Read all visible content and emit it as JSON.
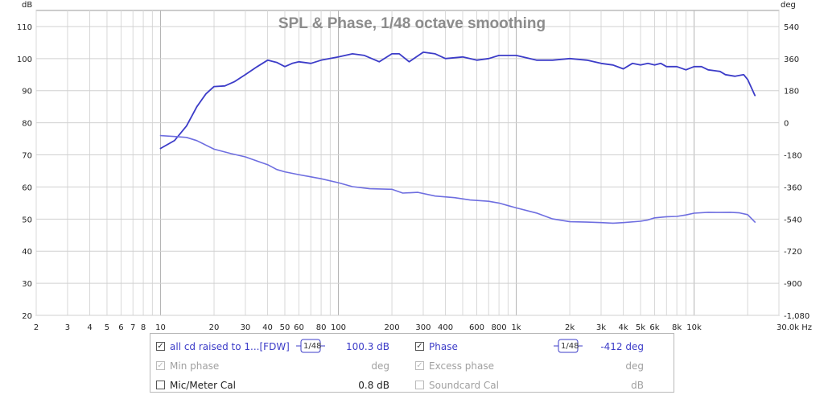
{
  "chart_data": {
    "type": "line",
    "title": "SPL & Phase, 1/48 octave smoothing",
    "y_left_unit": "dB",
    "y_right_unit": "deg",
    "x_unit": "Hz",
    "xlim": [
      2,
      30000
    ],
    "x_scale": "log",
    "ylim_left": [
      20,
      115
    ],
    "ylim_right": [
      -1080,
      630
    ],
    "x_tick_labels": [
      {
        "v": 2,
        "t": "2"
      },
      {
        "v": 3,
        "t": "3"
      },
      {
        "v": 4,
        "t": "4"
      },
      {
        "v": 5,
        "t": "5"
      },
      {
        "v": 6,
        "t": "6"
      },
      {
        "v": 7,
        "t": "7"
      },
      {
        "v": 8,
        "t": "8"
      },
      {
        "v": 10,
        "t": "10"
      },
      {
        "v": 20,
        "t": "20"
      },
      {
        "v": 30,
        "t": "30"
      },
      {
        "v": 40,
        "t": "40"
      },
      {
        "v": 50,
        "t": "50"
      },
      {
        "v": 60,
        "t": "60"
      },
      {
        "v": 80,
        "t": "80"
      },
      {
        "v": 100,
        "t": "100"
      },
      {
        "v": 200,
        "t": "200"
      },
      {
        "v": 300,
        "t": "300"
      },
      {
        "v": 400,
        "t": "400"
      },
      {
        "v": 600,
        "t": "600"
      },
      {
        "v": 800,
        "t": "800"
      },
      {
        "v": 1000,
        "t": "1k"
      },
      {
        "v": 2000,
        "t": "2k"
      },
      {
        "v": 3000,
        "t": "3k"
      },
      {
        "v": 4000,
        "t": "4k"
      },
      {
        "v": 5000,
        "t": "5k"
      },
      {
        "v": 6000,
        "t": "6k"
      },
      {
        "v": 8000,
        "t": "8k"
      },
      {
        "v": 10000,
        "t": "10k"
      },
      {
        "v": 30000,
        "t": "30.0k Hz"
      }
    ],
    "y_left_ticks": [
      20,
      30,
      40,
      50,
      60,
      70,
      80,
      90,
      100,
      110
    ],
    "y_right_ticks": [
      {
        "v": 540,
        "t": "540"
      },
      {
        "v": 360,
        "t": "360"
      },
      {
        "v": 180,
        "t": "180"
      },
      {
        "v": 0,
        "t": "0"
      },
      {
        "v": -180,
        "t": "-180"
      },
      {
        "v": -360,
        "t": "-360"
      },
      {
        "v": -540,
        "t": "-540"
      },
      {
        "v": -720,
        "t": "-720"
      },
      {
        "v": -900,
        "t": "-900"
      },
      {
        "v": -1080,
        "t": "-1,080"
      }
    ],
    "grid": true,
    "series": [
      {
        "name": "all cd raised to 1...[FDW]",
        "axis": "left",
        "color": "#3c3cc8",
        "points": [
          [
            10,
            72
          ],
          [
            12,
            74.5
          ],
          [
            14,
            79
          ],
          [
            16,
            85
          ],
          [
            18,
            89
          ],
          [
            20,
            91.3
          ],
          [
            23,
            91.5
          ],
          [
            26,
            92.8
          ],
          [
            30,
            95
          ],
          [
            35,
            97.5
          ],
          [
            40,
            99.5
          ],
          [
            45,
            98.8
          ],
          [
            50,
            97.5
          ],
          [
            55,
            98.5
          ],
          [
            60,
            99
          ],
          [
            70,
            98.5
          ],
          [
            80,
            99.5
          ],
          [
            100,
            100.5
          ],
          [
            120,
            101.5
          ],
          [
            140,
            101
          ],
          [
            170,
            99
          ],
          [
            200,
            101.5
          ],
          [
            220,
            101.5
          ],
          [
            250,
            99
          ],
          [
            300,
            102
          ],
          [
            350,
            101.5
          ],
          [
            400,
            100
          ],
          [
            500,
            100.5
          ],
          [
            600,
            99.5
          ],
          [
            700,
            100
          ],
          [
            800,
            101
          ],
          [
            1000,
            101
          ],
          [
            1300,
            99.5
          ],
          [
            1600,
            99.5
          ],
          [
            2000,
            100
          ],
          [
            2500,
            99.5
          ],
          [
            3000,
            98.5
          ],
          [
            3500,
            98
          ],
          [
            4000,
            96.8
          ],
          [
            4500,
            98.5
          ],
          [
            5000,
            98
          ],
          [
            5500,
            98.5
          ],
          [
            6000,
            98
          ],
          [
            6500,
            98.5
          ],
          [
            7000,
            97.5
          ],
          [
            8000,
            97.5
          ],
          [
            9000,
            96.5
          ],
          [
            10000,
            97.5
          ],
          [
            11000,
            97.5
          ],
          [
            12000,
            96.5
          ],
          [
            14000,
            96
          ],
          [
            15000,
            95
          ],
          [
            17000,
            94.5
          ],
          [
            19000,
            95
          ],
          [
            20000,
            93.5
          ],
          [
            22000,
            88.5
          ]
        ]
      },
      {
        "name": "Phase",
        "axis": "right",
        "color": "#6e6ee0",
        "points": [
          [
            10,
            -72
          ],
          [
            12,
            -77
          ],
          [
            14,
            -82
          ],
          [
            16,
            -100
          ],
          [
            20,
            -148
          ],
          [
            25,
            -173
          ],
          [
            30,
            -191
          ],
          [
            35,
            -215
          ],
          [
            40,
            -235
          ],
          [
            45,
            -262
          ],
          [
            50,
            -275
          ],
          [
            60,
            -291
          ],
          [
            70,
            -303
          ],
          [
            80,
            -314
          ],
          [
            100,
            -336
          ],
          [
            120,
            -358
          ],
          [
            150,
            -370
          ],
          [
            200,
            -373
          ],
          [
            230,
            -394
          ],
          [
            280,
            -390
          ],
          [
            350,
            -411
          ],
          [
            450,
            -420
          ],
          [
            550,
            -433
          ],
          [
            700,
            -440
          ],
          [
            800,
            -450
          ],
          [
            1000,
            -477
          ],
          [
            1300,
            -506
          ],
          [
            1600,
            -539
          ],
          [
            2000,
            -555
          ],
          [
            2500,
            -557
          ],
          [
            3000,
            -560
          ],
          [
            3500,
            -563
          ],
          [
            4000,
            -560
          ],
          [
            5000,
            -552
          ],
          [
            5500,
            -545
          ],
          [
            6000,
            -533
          ],
          [
            7000,
            -527
          ],
          [
            8000,
            -525
          ],
          [
            9000,
            -517
          ],
          [
            10000,
            -507
          ],
          [
            12000,
            -502
          ],
          [
            14000,
            -503
          ],
          [
            16000,
            -502
          ],
          [
            18000,
            -505
          ],
          [
            20000,
            -515
          ],
          [
            22000,
            -557
          ]
        ]
      }
    ]
  },
  "legend": {
    "rows": [
      {
        "checked": true,
        "label": "all cd raised to 1...[FDW]",
        "smoothing": "1/48",
        "value": "100.3 dB",
        "style": "blue"
      },
      {
        "checked": true,
        "label": "Min phase",
        "smoothing": "",
        "value": "deg",
        "style": "gray"
      },
      {
        "checked": false,
        "label": "Mic/Meter Cal",
        "smoothing": "",
        "value": "0.8 dB",
        "style": "black"
      }
    ],
    "rows_right": [
      {
        "checked": true,
        "label": "Phase",
        "smoothing": "1/48",
        "value": "-412 deg",
        "style": "blue"
      },
      {
        "checked": true,
        "label": "Excess phase",
        "smoothing": "",
        "value": "deg",
        "style": "gray"
      },
      {
        "checked": false,
        "label": "Soundcard Cal",
        "smoothing": "",
        "value": "dB",
        "style": "gray"
      }
    ]
  }
}
